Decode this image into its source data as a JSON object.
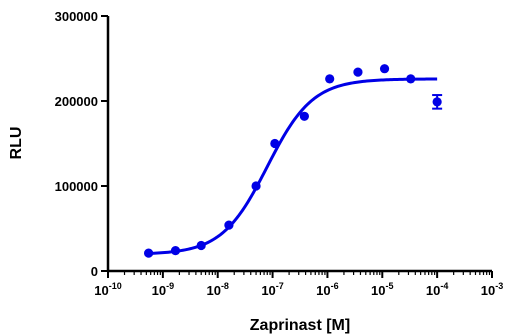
{
  "chart_data": {
    "type": "scatter",
    "title": "",
    "xlabel": "Zaprinast [M]",
    "ylabel": "RLU",
    "x_scale": "log",
    "xlim": [
      1e-10,
      0.001
    ],
    "ylim": [
      0,
      300000
    ],
    "grid": false,
    "x_ticks": [
      {
        "base": "10",
        "exp": "-10",
        "value": 1e-10
      },
      {
        "base": "10",
        "exp": "-9",
        "value": 1e-09
      },
      {
        "base": "10",
        "exp": "-8",
        "value": 1e-08
      },
      {
        "base": "10",
        "exp": "-7",
        "value": 1e-07
      },
      {
        "base": "10",
        "exp": "-6",
        "value": 1e-06
      },
      {
        "base": "10",
        "exp": "-5",
        "value": 1e-05
      },
      {
        "base": "10",
        "exp": "-4",
        "value": 0.0001
      },
      {
        "base": "10",
        "exp": "-3",
        "value": 0.001
      }
    ],
    "y_ticks": [
      {
        "label": "0",
        "value": 0
      },
      {
        "label": "100000",
        "value": 100000
      },
      {
        "label": "200000",
        "value": 200000
      },
      {
        "label": "300000",
        "value": 300000
      }
    ],
    "series": [
      {
        "color": "#0000e6",
        "points": [
          {
            "x": 5.5e-10,
            "y": 21000
          },
          {
            "x": 1.7e-09,
            "y": 24000
          },
          {
            "x": 5e-09,
            "y": 30000
          },
          {
            "x": 1.6e-08,
            "y": 54000
          },
          {
            "x": 5e-08,
            "y": 100000
          },
          {
            "x": 1.1e-07,
            "y": 150000
          },
          {
            "x": 3.8e-07,
            "y": 182000
          },
          {
            "x": 1.1e-06,
            "y": 226000
          },
          {
            "x": 3.6e-06,
            "y": 234000
          },
          {
            "x": 1.1e-05,
            "y": 238000
          },
          {
            "x": 3.3e-05,
            "y": 226000
          },
          {
            "x": 0.0001,
            "y": 199000,
            "error": 8000
          }
        ],
        "fit": {
          "model": "sigmoidal dose-response",
          "bottom": 19500,
          "top": 226000,
          "ec50": 8e-08,
          "hill_slope": 1.05,
          "x_range": [
            5.5e-10,
            0.0001
          ]
        }
      }
    ]
  }
}
